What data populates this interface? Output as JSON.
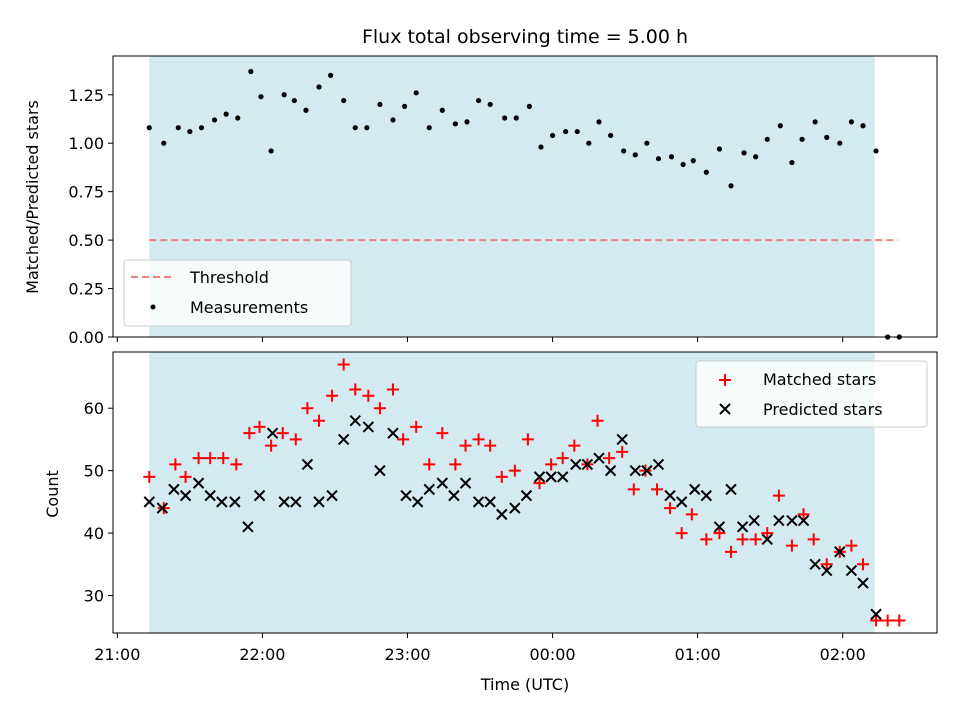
{
  "chart_data": [
    {
      "type": "scatter",
      "title": "Flux total observing time = 5.00 h",
      "ylabel": "Matched/Predicted stars",
      "xlabel": "",
      "x_unit": "hours since 21:00 (UTC)",
      "ylim": [
        0,
        1.45
      ],
      "yticks": [
        0.0,
        0.25,
        0.5,
        0.75,
        1.0,
        1.25
      ],
      "ytick_labels": [
        "0.00",
        "0.25",
        "0.50",
        "0.75",
        "1.00",
        "1.25"
      ],
      "shaded_span": {
        "x": [
          0.22,
          5.22
        ],
        "color": "#d3eaf1"
      },
      "threshold": {
        "label": "Threshold",
        "value": 0.5,
        "x": [
          0.22,
          5.38
        ],
        "color": "#f08080"
      },
      "legend": {
        "position": "lower-left",
        "items": [
          {
            "label": "Threshold",
            "marker": "dashed-line",
            "color": "#f08080"
          },
          {
            "label": "Measurements",
            "marker": "dot",
            "color": "#000000"
          }
        ]
      },
      "series": [
        {
          "name": "Measurements",
          "color": "#000000",
          "points": [
            [
              0.22,
              1.08
            ],
            [
              0.32,
              1.0
            ],
            [
              0.42,
              1.08
            ],
            [
              0.5,
              1.06
            ],
            [
              0.58,
              1.08
            ],
            [
              0.67,
              1.12
            ],
            [
              0.75,
              1.15
            ],
            [
              0.83,
              1.13
            ],
            [
              0.92,
              1.37
            ],
            [
              0.99,
              1.24
            ],
            [
              1.06,
              0.96
            ],
            [
              1.15,
              1.25
            ],
            [
              1.22,
              1.22
            ],
            [
              1.3,
              1.17
            ],
            [
              1.39,
              1.29
            ],
            [
              1.47,
              1.35
            ],
            [
              1.56,
              1.22
            ],
            [
              1.64,
              1.08
            ],
            [
              1.72,
              1.08
            ],
            [
              1.81,
              1.2
            ],
            [
              1.9,
              1.12
            ],
            [
              1.98,
              1.19
            ],
            [
              2.06,
              1.26
            ],
            [
              2.15,
              1.08
            ],
            [
              2.24,
              1.17
            ],
            [
              2.33,
              1.1
            ],
            [
              2.41,
              1.11
            ],
            [
              2.49,
              1.22
            ],
            [
              2.57,
              1.2
            ],
            [
              2.67,
              1.13
            ],
            [
              2.75,
              1.13
            ],
            [
              2.84,
              1.19
            ],
            [
              2.92,
              0.98
            ],
            [
              3.0,
              1.04
            ],
            [
              3.09,
              1.06
            ],
            [
              3.17,
              1.06
            ],
            [
              3.25,
              1.0
            ],
            [
              3.32,
              1.11
            ],
            [
              3.4,
              1.04
            ],
            [
              3.49,
              0.96
            ],
            [
              3.57,
              0.94
            ],
            [
              3.65,
              1.0
            ],
            [
              3.73,
              0.92
            ],
            [
              3.82,
              0.93
            ],
            [
              3.9,
              0.89
            ],
            [
              3.97,
              0.91
            ],
            [
              4.06,
              0.85
            ],
            [
              4.15,
              0.97
            ],
            [
              4.23,
              0.78
            ],
            [
              4.32,
              0.95
            ],
            [
              4.4,
              0.93
            ],
            [
              4.48,
              1.02
            ],
            [
              4.57,
              1.09
            ],
            [
              4.65,
              0.9
            ],
            [
              4.72,
              1.02
            ],
            [
              4.81,
              1.11
            ],
            [
              4.89,
              1.03
            ],
            [
              4.98,
              1.0
            ],
            [
              5.06,
              1.11
            ],
            [
              5.14,
              1.09
            ],
            [
              5.23,
              0.96
            ],
            [
              5.31,
              0.0
            ],
            [
              5.39,
              0.0
            ]
          ]
        }
      ]
    },
    {
      "type": "scatter",
      "title": "",
      "ylabel": "Count",
      "xlabel": "Time (UTC)",
      "x_unit": "hours since 21:00 (UTC)",
      "ylim": [
        24,
        69
      ],
      "yticks": [
        30,
        40,
        50,
        60
      ],
      "xticks": [
        0,
        1,
        2,
        3,
        4,
        5
      ],
      "xtick_labels": [
        "21:00",
        "22:00",
        "23:00",
        "00:00",
        "01:00",
        "02:00"
      ],
      "shaded_span": {
        "x": [
          0.22,
          5.22
        ],
        "color": "#d3eaf1"
      },
      "legend": {
        "position": "upper-right",
        "items": [
          {
            "label": "Matched stars",
            "marker": "plus",
            "color": "#ff0000"
          },
          {
            "label": "Predicted stars",
            "marker": "x",
            "color": "#000000"
          }
        ]
      },
      "series": [
        {
          "name": "Matched stars",
          "marker": "plus",
          "color": "#ff0000",
          "points": [
            [
              0.22,
              49
            ],
            [
              0.32,
              44
            ],
            [
              0.4,
              51
            ],
            [
              0.47,
              49
            ],
            [
              0.56,
              52
            ],
            [
              0.64,
              52
            ],
            [
              0.73,
              52
            ],
            [
              0.82,
              51
            ],
            [
              0.91,
              56
            ],
            [
              0.98,
              57
            ],
            [
              1.06,
              54
            ],
            [
              1.14,
              56
            ],
            [
              1.23,
              55
            ],
            [
              1.31,
              60
            ],
            [
              1.39,
              58
            ],
            [
              1.48,
              62
            ],
            [
              1.56,
              67
            ],
            [
              1.64,
              63
            ],
            [
              1.73,
              62
            ],
            [
              1.81,
              60
            ],
            [
              1.9,
              63
            ],
            [
              1.97,
              55
            ],
            [
              2.06,
              57
            ],
            [
              2.15,
              51
            ],
            [
              2.24,
              56
            ],
            [
              2.33,
              51
            ],
            [
              2.4,
              54
            ],
            [
              2.49,
              55
            ],
            [
              2.57,
              54
            ],
            [
              2.65,
              49
            ],
            [
              2.74,
              50
            ],
            [
              2.83,
              55
            ],
            [
              2.91,
              48
            ],
            [
              2.99,
              51
            ],
            [
              3.07,
              52
            ],
            [
              3.15,
              54
            ],
            [
              3.24,
              51
            ],
            [
              3.31,
              58
            ],
            [
              3.39,
              52
            ],
            [
              3.48,
              53
            ],
            [
              3.56,
              47
            ],
            [
              3.64,
              50
            ],
            [
              3.72,
              47
            ],
            [
              3.81,
              44
            ],
            [
              3.89,
              40
            ],
            [
              3.96,
              43
            ],
            [
              4.06,
              39
            ],
            [
              4.15,
              40
            ],
            [
              4.23,
              37
            ],
            [
              4.31,
              39
            ],
            [
              4.4,
              39
            ],
            [
              4.48,
              40
            ],
            [
              4.56,
              46
            ],
            [
              4.65,
              38
            ],
            [
              4.73,
              43
            ],
            [
              4.8,
              39
            ],
            [
              4.89,
              35
            ],
            [
              4.98,
              37
            ],
            [
              5.06,
              38
            ],
            [
              5.14,
              35
            ],
            [
              5.23,
              26
            ],
            [
              5.31,
              26
            ],
            [
              5.39,
              26
            ]
          ]
        },
        {
          "name": "Predicted stars",
          "marker": "x",
          "color": "#000000",
          "points": [
            [
              0.22,
              45
            ],
            [
              0.31,
              44
            ],
            [
              0.39,
              47
            ],
            [
              0.47,
              46
            ],
            [
              0.56,
              48
            ],
            [
              0.64,
              46
            ],
            [
              0.72,
              45
            ],
            [
              0.81,
              45
            ],
            [
              0.9,
              41
            ],
            [
              0.98,
              46
            ],
            [
              1.07,
              56
            ],
            [
              1.15,
              45
            ],
            [
              1.23,
              45
            ],
            [
              1.31,
              51
            ],
            [
              1.39,
              45
            ],
            [
              1.48,
              46
            ],
            [
              1.56,
              55
            ],
            [
              1.64,
              58
            ],
            [
              1.73,
              57
            ],
            [
              1.81,
              50
            ],
            [
              1.9,
              56
            ],
            [
              1.99,
              46
            ],
            [
              2.07,
              45
            ],
            [
              2.15,
              47
            ],
            [
              2.24,
              48
            ],
            [
              2.32,
              46
            ],
            [
              2.4,
              48
            ],
            [
              2.49,
              45
            ],
            [
              2.57,
              45
            ],
            [
              2.65,
              43
            ],
            [
              2.74,
              44
            ],
            [
              2.82,
              46
            ],
            [
              2.91,
              49
            ],
            [
              2.99,
              49
            ],
            [
              3.07,
              49
            ],
            [
              3.16,
              51
            ],
            [
              3.24,
              51
            ],
            [
              3.32,
              52
            ],
            [
              3.4,
              50
            ],
            [
              3.48,
              55
            ],
            [
              3.57,
              50
            ],
            [
              3.65,
              50
            ],
            [
              3.73,
              51
            ],
            [
              3.81,
              46
            ],
            [
              3.89,
              45
            ],
            [
              3.98,
              47
            ],
            [
              4.06,
              46
            ],
            [
              4.15,
              41
            ],
            [
              4.23,
              47
            ],
            [
              4.31,
              41
            ],
            [
              4.39,
              42
            ],
            [
              4.48,
              39
            ],
            [
              4.56,
              42
            ],
            [
              4.65,
              42
            ],
            [
              4.73,
              42
            ],
            [
              4.81,
              35
            ],
            [
              4.89,
              34
            ],
            [
              4.98,
              37
            ],
            [
              5.06,
              34
            ],
            [
              5.14,
              32
            ],
            [
              5.23,
              27
            ]
          ]
        }
      ]
    }
  ]
}
